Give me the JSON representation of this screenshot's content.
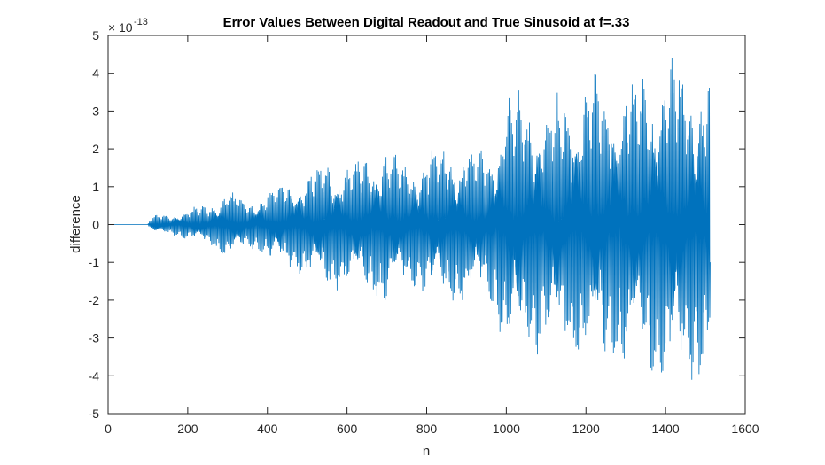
{
  "chart_data": {
    "type": "line",
    "title": "Error Values Between Digital Readout and True Sinusoid at f=.33",
    "xlabel": "n",
    "ylabel": "difference",
    "xlim": [
      0,
      1600
    ],
    "ylim": [
      -5,
      5
    ],
    "xticks": [
      0,
      200,
      400,
      600,
      800,
      1000,
      1200,
      1400,
      1600
    ],
    "xtick_labels": [
      "0",
      "200",
      "400",
      "600",
      "800",
      "1000",
      "1200",
      "1400",
      "1600"
    ],
    "yticks": [
      -5,
      -4,
      -3,
      -2,
      -1,
      0,
      1,
      2,
      3,
      4,
      5
    ],
    "ytick_labels": [
      "-5",
      "-4",
      "-3",
      "-2",
      "-1",
      "0",
      "1",
      "2",
      "3",
      "4",
      "5"
    ],
    "y_exponent_base": "10",
    "y_exponent_power": "-13",
    "grid": false,
    "line_color": "#0072BD",
    "series": [
      {
        "x_start": 1,
        "x_end": 1512,
        "frequency": 0.33,
        "envelope": [
          [
            0,
            0.0
          ],
          [
            100,
            0.02
          ],
          [
            110,
            0.25
          ],
          [
            160,
            0.3
          ],
          [
            200,
            0.45
          ],
          [
            250,
            0.55
          ],
          [
            300,
            1.0
          ],
          [
            350,
            0.65
          ],
          [
            400,
            1.05
          ],
          [
            450,
            1.2
          ],
          [
            500,
            1.5
          ],
          [
            550,
            1.85
          ],
          [
            600,
            1.7
          ],
          [
            650,
            1.9
          ],
          [
            700,
            2.3
          ],
          [
            750,
            1.7
          ],
          [
            800,
            2.1
          ],
          [
            850,
            2.2
          ],
          [
            900,
            2.2
          ],
          [
            950,
            2.0
          ],
          [
            980,
            2.8
          ],
          [
            1000,
            3.8
          ],
          [
            1050,
            3.6
          ],
          [
            1100,
            3.5
          ],
          [
            1150,
            3.8
          ],
          [
            1200,
            4.1
          ],
          [
            1250,
            4.2
          ],
          [
            1300,
            4.0
          ],
          [
            1350,
            4.2
          ],
          [
            1400,
            4.6
          ],
          [
            1430,
            4.8
          ],
          [
            1450,
            4.3
          ],
          [
            1480,
            4.4
          ],
          [
            1512,
            4.2
          ]
        ]
      }
    ]
  }
}
